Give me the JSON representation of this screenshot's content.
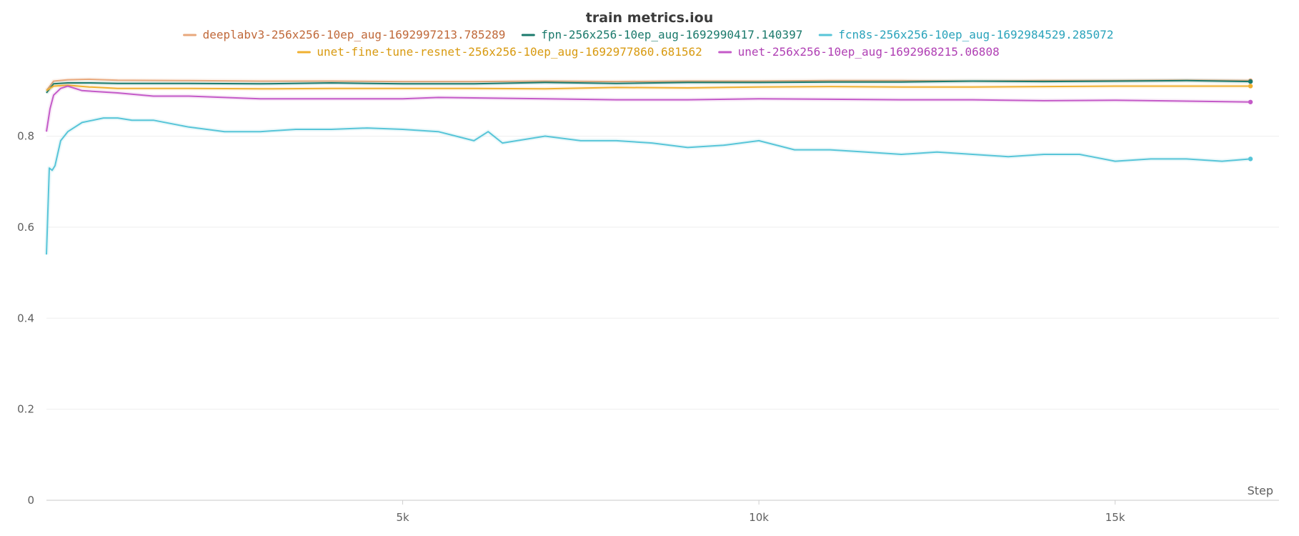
{
  "chart_data": {
    "type": "line",
    "title": "train metrics.iou",
    "xlabel": "Step",
    "ylabel": "",
    "xlim": [
      0,
      17300
    ],
    "ylim": [
      0,
      0.95
    ],
    "x_ticks": [
      {
        "value": 5000,
        "label": "5k"
      },
      {
        "value": 10000,
        "label": "10k"
      },
      {
        "value": 15000,
        "label": "15k"
      }
    ],
    "y_ticks": [
      {
        "value": 0,
        "label": "0"
      },
      {
        "value": 0.2,
        "label": "0.2"
      },
      {
        "value": 0.4,
        "label": "0.4"
      },
      {
        "value": 0.6,
        "label": "0.6"
      },
      {
        "value": 0.8,
        "label": "0.8"
      }
    ],
    "grid": true,
    "legend_position": "top",
    "series": [
      {
        "name": "deeplabv3-256x256-10ep_aug-1692997213.785289",
        "color": "#e8a87c",
        "legend_text_color": "#c0693a",
        "x": [
          0,
          100,
          300,
          600,
          1000,
          2000,
          3000,
          4000,
          5000,
          6000,
          7000,
          8000,
          9000,
          10000,
          11000,
          12000,
          13000,
          14000,
          15000,
          16000,
          16900
        ],
        "y": [
          0.9,
          0.921,
          0.924,
          0.925,
          0.923,
          0.922,
          0.921,
          0.921,
          0.92,
          0.92,
          0.921,
          0.92,
          0.921,
          0.921,
          0.922,
          0.922,
          0.921,
          0.922,
          0.922,
          0.923,
          0.922
        ]
      },
      {
        "name": "fpn-256x256-10ep_aug-1692990417.140397",
        "color": "#1b7a6c",
        "legend_text_color": "#1b7a6c",
        "x": [
          0,
          100,
          300,
          600,
          1000,
          2000,
          3000,
          4000,
          5000,
          6000,
          7000,
          8000,
          9000,
          10000,
          11000,
          12000,
          13000,
          14000,
          15000,
          16000,
          16900
        ],
        "y": [
          0.895,
          0.915,
          0.917,
          0.917,
          0.916,
          0.916,
          0.915,
          0.917,
          0.915,
          0.915,
          0.918,
          0.916,
          0.918,
          0.918,
          0.919,
          0.919,
          0.921,
          0.92,
          0.921,
          0.922,
          0.92
        ]
      },
      {
        "name": "fcn8s-256x256-10ep_aug-1692984529.285072",
        "color": "#57c5d8",
        "legend_text_color": "#2aa3bb",
        "x": [
          0,
          40,
          80,
          120,
          200,
          300,
          500,
          800,
          1000,
          1200,
          1500,
          2000,
          2500,
          3000,
          3500,
          4000,
          4500,
          5000,
          5500,
          6000,
          6200,
          6400,
          7000,
          7500,
          8000,
          8500,
          9000,
          9500,
          10000,
          10500,
          11000,
          11500,
          12000,
          12500,
          13000,
          13500,
          14000,
          14500,
          15000,
          15500,
          16000,
          16500,
          16900
        ],
        "y": [
          0.54,
          0.73,
          0.725,
          0.735,
          0.79,
          0.81,
          0.83,
          0.84,
          0.84,
          0.835,
          0.835,
          0.82,
          0.81,
          0.81,
          0.815,
          0.815,
          0.818,
          0.815,
          0.81,
          0.79,
          0.81,
          0.785,
          0.8,
          0.79,
          0.79,
          0.785,
          0.775,
          0.78,
          0.79,
          0.77,
          0.77,
          0.765,
          0.76,
          0.765,
          0.76,
          0.755,
          0.76,
          0.76,
          0.745,
          0.75,
          0.75,
          0.745,
          0.75
        ]
      },
      {
        "name": "unet-fine-tune-resnet-256x256-10ep_aug-1692977860.681562",
        "color": "#f0b030",
        "legend_text_color": "#d89a10",
        "x": [
          0,
          100,
          300,
          600,
          1000,
          2000,
          3000,
          4000,
          5000,
          6000,
          7000,
          8000,
          9000,
          10000,
          11000,
          12000,
          13000,
          14000,
          15000,
          16000,
          16900
        ],
        "y": [
          0.9,
          0.91,
          0.912,
          0.908,
          0.905,
          0.905,
          0.904,
          0.905,
          0.905,
          0.905,
          0.904,
          0.907,
          0.906,
          0.908,
          0.909,
          0.908,
          0.908,
          0.909,
          0.91,
          0.91,
          0.91
        ]
      },
      {
        "name": "unet-256x256-10ep_aug-1692968215.06808",
        "color": "#c45ac8",
        "legend_text_color": "#b040b4",
        "x": [
          0,
          50,
          100,
          200,
          300,
          500,
          1000,
          1500,
          2000,
          2500,
          3000,
          4000,
          5000,
          5500,
          6000,
          7000,
          8000,
          9000,
          10000,
          11000,
          12000,
          13000,
          14000,
          15000,
          16000,
          16900
        ],
        "y": [
          0.81,
          0.86,
          0.89,
          0.905,
          0.91,
          0.9,
          0.895,
          0.888,
          0.888,
          0.885,
          0.882,
          0.882,
          0.882,
          0.885,
          0.884,
          0.882,
          0.88,
          0.88,
          0.882,
          0.881,
          0.88,
          0.88,
          0.878,
          0.879,
          0.877,
          0.875
        ]
      }
    ]
  }
}
